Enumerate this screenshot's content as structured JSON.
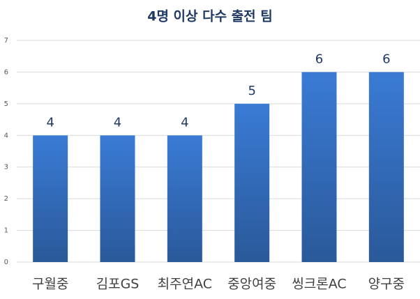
{
  "chart_data": {
    "type": "bar",
    "title": "4명 이상 다수 출전 팀",
    "categories": [
      "구월중",
      "김포GS",
      "최주연AC",
      "중앙여중",
      "씽크론AC",
      "양구중"
    ],
    "values": [
      4,
      4,
      4,
      5,
      6,
      6
    ],
    "color": "#3a7bd5",
    "ylim": [
      0,
      7
    ],
    "yticks": [
      0,
      1,
      2,
      3,
      4,
      5,
      6,
      7
    ],
    "grid": true
  }
}
